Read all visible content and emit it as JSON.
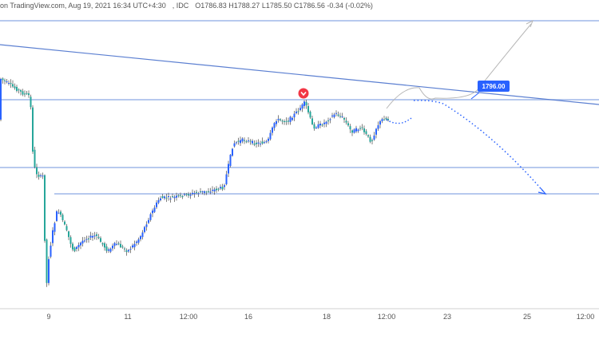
{
  "header": {
    "source": "on TradingView.com, Aug 19, 2021 16:34 UTC+4:30",
    "symbol": ", IDC",
    "ohlc": "O1786.83  H1788.27  L1785.50  C1786.56  -0.34 (-0.02%)"
  },
  "colors": {
    "up_candle": "#26a69a",
    "candle_body_up": "#2962ff",
    "horizontal_line": "#9fb7e8",
    "trendline": "#5b7fd1",
    "projection": "#2962ff",
    "price_tag_bg": "#2962ff",
    "marker": "#f23645"
  },
  "price_tag": {
    "label": "1796.00"
  },
  "chart_data": {
    "type": "candlestick",
    "x_ticks": [
      "9",
      "11",
      "12:00",
      "16",
      "18",
      "12:00",
      "23",
      "25",
      "12:00"
    ],
    "horizontal_levels": [
      1808,
      1792,
      1773,
      1762
    ],
    "marker_icon": "chevron-down-icon",
    "y_range_note": "no y axis labels visible"
  }
}
